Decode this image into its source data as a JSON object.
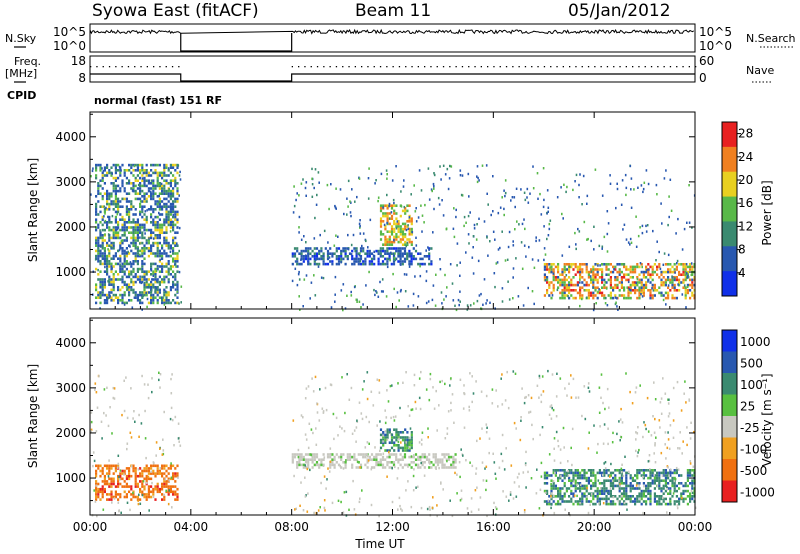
{
  "header": {
    "station": "Syowa East (fitACF)",
    "beam": "Beam 11",
    "date": "05/Jan/2012"
  },
  "left_labels": {
    "nsky": "N.Sky",
    "freq": "Freq.",
    "freq_unit": "[MHz]",
    "cpid": "CPID"
  },
  "right_labels": {
    "nsearch": "N.Search",
    "nave": "Nave"
  },
  "cpid_text": "normal (fast) 151 RF",
  "chart_data": [
    {
      "type": "line",
      "panel": "noise",
      "left_ticks": [
        "10^5",
        "10^0"
      ],
      "right_ticks": [
        "10^5",
        "10^0"
      ],
      "left_label": "N.Sky",
      "right_label": "N.Search",
      "data_gap_hours": [
        3.6,
        8.0
      ],
      "x_range_hours": [
        0,
        24
      ]
    },
    {
      "type": "line",
      "panel": "frequency_nave",
      "left_ticks": [
        "18",
        "8"
      ],
      "right_ticks": [
        "60",
        "0"
      ],
      "left_label": "Freq. [MHz]",
      "right_label": "Nave",
      "data_gap_hours": [
        3.6,
        8.0
      ]
    },
    {
      "type": "heatmap",
      "panel": "power",
      "ylabel": "Slant Range [km]",
      "yticks": [
        1000,
        2000,
        3000,
        4000
      ],
      "ylim": [
        180,
        4550
      ],
      "xlim_hours": [
        0,
        24
      ],
      "colorbar_label": "Power [dB]",
      "colorbar_ticks": [
        4,
        8,
        12,
        16,
        20,
        24,
        28
      ],
      "colorbar_range": [
        0,
        30
      ],
      "colors": [
        "#1030e8",
        "#2858b0",
        "#3a8a70",
        "#58b848",
        "#e8d020",
        "#f08020",
        "#e82020"
      ],
      "data_gap_hours": [
        3.6,
        8.0
      ],
      "echo_regions": [
        {
          "t": [
            0.2,
            3.5
          ],
          "r": [
            300,
            3400
          ],
          "level": "mixed",
          "peak_db": 22
        },
        {
          "t": [
            8.0,
            13.5
          ],
          "r": [
            1200,
            1550
          ],
          "level": "low-moderate",
          "peak_db": 10
        },
        {
          "t": [
            11.5,
            12.8
          ],
          "r": [
            1600,
            2500
          ],
          "level": "moderate-high",
          "peak_db": 24
        },
        {
          "t": [
            18.0,
            24.0
          ],
          "r": [
            400,
            1200
          ],
          "level": "high",
          "peak_db": 28
        }
      ]
    },
    {
      "type": "heatmap",
      "panel": "velocity",
      "ylabel": "Slant Range [km]",
      "yticks": [
        1000,
        2000,
        3000,
        4000
      ],
      "ylim": [
        180,
        4550
      ],
      "xlim_hours": [
        0,
        24
      ],
      "xticks": [
        "00:00",
        "04:00",
        "08:00",
        "12:00",
        "16:00",
        "20:00",
        "00:00"
      ],
      "xlabel": "Time UT",
      "colorbar_label": "Velocity [m s⁻¹]",
      "colorbar_ticks": [
        "1000",
        "500",
        "100",
        "25",
        "-25",
        "-100",
        "-500",
        "-1000"
      ],
      "colors": [
        "#1030e8",
        "#2858b0",
        "#3a8a70",
        "#58c040",
        "#c8c8c0",
        "#f0a020",
        "#f07010",
        "#e82020"
      ],
      "data_gap_hours": [
        3.6,
        8.0
      ],
      "echo_regions": [
        {
          "t": [
            0.2,
            3.5
          ],
          "r": [
            500,
            1300
          ],
          "level": "away",
          "velocity": -300
        },
        {
          "t": [
            8.0,
            14.5
          ],
          "r": [
            1250,
            1550
          ],
          "level": "ground scatter",
          "velocity": 0
        },
        {
          "t": [
            11.5,
            12.8
          ],
          "r": [
            1600,
            2100
          ],
          "level": "toward",
          "velocity": 600
        },
        {
          "t": [
            18.0,
            24.0
          ],
          "r": [
            400,
            1200
          ],
          "level": "toward",
          "velocity": 200
        }
      ]
    }
  ]
}
